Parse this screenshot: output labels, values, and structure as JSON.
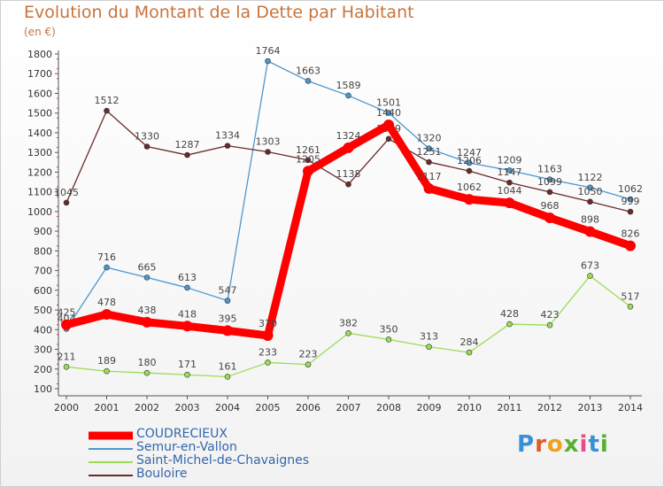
{
  "title": "Evolution du Montant de la Dette par Habitant",
  "unit_label": "(en €)",
  "logo": {
    "text": "Proxiti",
    "colors": [
      "#3a8fd6",
      "#e05a2a",
      "#f0a020",
      "#58b030",
      "#e84a8a",
      "#3a8fd6",
      "#58b030"
    ]
  },
  "chart_data": {
    "type": "line",
    "title": "Evolution du Montant de la Dette par Habitant",
    "ylabel": "(en €)",
    "xlabel": "",
    "x": [
      "2000",
      "2001",
      "2002",
      "2003",
      "2004",
      "2005",
      "2006",
      "2007",
      "2008",
      "2009",
      "2010",
      "2011",
      "2012",
      "2013",
      "2014"
    ],
    "ylim": [
      100,
      1800
    ],
    "yticks": [
      100,
      200,
      300,
      400,
      500,
      600,
      700,
      800,
      900,
      1000,
      1100,
      1200,
      1300,
      1400,
      1500,
      1600,
      1700,
      1800
    ],
    "grid": false,
    "legend_position": "bottom-left",
    "series": [
      {
        "name": "COUDRECIEUX",
        "color": "#ff0000",
        "values": [
          425,
          478,
          438,
          418,
          395,
          370,
          1205,
          1324,
          1440,
          1117,
          1062,
          1044,
          968,
          898,
          826
        ],
        "emphasis": true
      },
      {
        "name": "Semur-en-Vallon",
        "color": "#4d97cf",
        "values": [
          404,
          716,
          665,
          613,
          547,
          1764,
          1663,
          1589,
          1501,
          1320,
          1247,
          1209,
          1163,
          1122,
          1062
        ]
      },
      {
        "name": "Saint-Michel-de-Chavaignes",
        "color": "#99dd55",
        "values": [
          211,
          189,
          180,
          171,
          161,
          233,
          223,
          382,
          350,
          313,
          284,
          428,
          423,
          673,
          517
        ]
      },
      {
        "name": "Bouloire",
        "color": "#6b2a2a",
        "values": [
          1045,
          1512,
          1330,
          1287,
          1334,
          1303,
          1261,
          1138,
          1369,
          1251,
          1206,
          1147,
          1099,
          1050,
          999
        ]
      }
    ]
  }
}
